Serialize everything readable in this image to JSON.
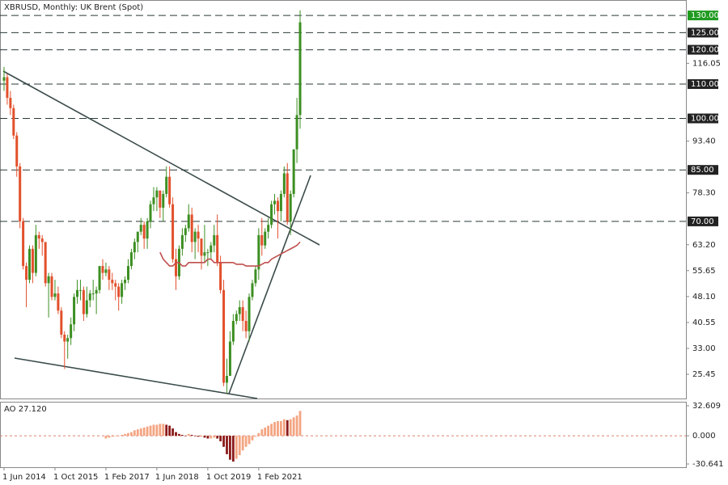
{
  "chart_data": [
    {
      "type": "candlestick",
      "title": "XBRUSD, Monthly:  UK Brent (Spot)",
      "categories": [
        "1 Jun 2014",
        null,
        null,
        null,
        null,
        null,
        null,
        null,
        null,
        null,
        null,
        null,
        null,
        null,
        null,
        null,
        "1 Oct 2015",
        null,
        null,
        null,
        null,
        null,
        null,
        null,
        null,
        null,
        null,
        null,
        null,
        null,
        null,
        null,
        "1 Feb 2017",
        null,
        null,
        null,
        null,
        null,
        null,
        null,
        null,
        null,
        null,
        null,
        null,
        null,
        null,
        null,
        "1 Jun 2018",
        null,
        null,
        null,
        null,
        null,
        null,
        null,
        null,
        null,
        null,
        null,
        null,
        null,
        null,
        null,
        "1 Oct 2019",
        null,
        null,
        null,
        null,
        null,
        null,
        null,
        null,
        null,
        null,
        null,
        null,
        null,
        null,
        null,
        "1 Feb 2021",
        null,
        null,
        null,
        null,
        null,
        null,
        null,
        null,
        null,
        null,
        null,
        null,
        null
      ],
      "open": [
        111,
        112,
        106,
        103,
        95,
        86,
        70,
        57,
        53,
        62,
        55,
        66,
        65,
        64,
        52,
        54,
        48,
        49,
        44,
        37,
        35,
        36,
        40,
        48,
        50,
        50,
        43,
        47,
        49,
        49,
        50,
        57,
        55,
        56,
        53,
        52,
        51,
        48,
        52,
        53,
        57,
        61,
        64,
        67,
        69,
        65,
        70,
        75,
        77,
        79,
        74,
        78,
        83,
        75,
        59,
        54,
        62,
        66,
        68,
        72,
        64,
        67,
        65,
        60,
        61,
        61,
        63,
        66,
        58,
        50,
        23,
        25,
        35,
        41,
        43,
        45,
        41,
        38,
        48,
        52,
        56,
        66,
        63,
        67,
        69,
        75,
        76,
        73,
        78,
        84,
        70,
        78,
        91,
        101
      ],
      "high": [
        115,
        113,
        108,
        104,
        96,
        87,
        71,
        58,
        63,
        63,
        69,
        67,
        66,
        64,
        55,
        55,
        53,
        51,
        45,
        38,
        37,
        42,
        49,
        53,
        53,
        51,
        51,
        50,
        53,
        51,
        57,
        59,
        58,
        57,
        55,
        53,
        52,
        53,
        54,
        59,
        62,
        65,
        67,
        71,
        70,
        71,
        76,
        80,
        80,
        79,
        79,
        86,
        86,
        77,
        62,
        63,
        68,
        69,
        75,
        74,
        68,
        69,
        65,
        69,
        62,
        64,
        69,
        72,
        60,
        53,
        30,
        38,
        43,
        44,
        47,
        47,
        44,
        49,
        53,
        57,
        68,
        71,
        68,
        71,
        76,
        78,
        77,
        79,
        86,
        87,
        79,
        91,
        106,
        131.5
      ],
      "low": [
        108,
        104,
        101,
        94,
        83,
        68,
        56,
        45,
        52,
        52,
        54,
        62,
        60,
        51,
        42,
        47,
        47,
        43,
        36,
        27,
        30,
        34,
        38,
        46,
        47,
        41,
        42,
        45,
        47,
        43,
        49,
        53,
        54,
        50,
        50,
        47,
        44,
        46,
        50,
        52,
        56,
        59,
        61,
        66,
        62,
        62,
        68,
        73,
        73,
        71,
        70,
        77,
        74,
        58,
        50,
        53,
        60,
        64,
        67,
        61,
        59,
        61,
        56,
        58,
        57,
        59,
        61,
        57,
        49,
        22,
        20,
        25,
        34,
        40,
        41,
        38,
        36,
        35,
        47,
        51,
        53,
        60,
        62,
        65,
        68,
        72,
        65,
        70,
        77,
        69,
        66,
        77,
        87,
        97
      ],
      "close": [
        112,
        106,
        103,
        95,
        86,
        70,
        57,
        53,
        62,
        55,
        66,
        65,
        64,
        52,
        54,
        48,
        49,
        44,
        37,
        35,
        36,
        40,
        48,
        50,
        50,
        43,
        47,
        49,
        49,
        50,
        57,
        55,
        56,
        53,
        52,
        51,
        48,
        52,
        53,
        57,
        61,
        64,
        67,
        69,
        65,
        70,
        75,
        77,
        79,
        74,
        78,
        83,
        75,
        59,
        54,
        62,
        66,
        68,
        72,
        64,
        67,
        65,
        60,
        61,
        61,
        63,
        66,
        58,
        50,
        23,
        25,
        35,
        41,
        43,
        45,
        41,
        38,
        48,
        52,
        56,
        66,
        63,
        67,
        69,
        75,
        76,
        73,
        78,
        84,
        70,
        78,
        91,
        101,
        128
      ],
      "up_color": "#3d8f22",
      "down_color": "#e2502c",
      "ma": {
        "color": "#c0504d",
        "values": [
          null,
          null,
          null,
          null,
          null,
          null,
          null,
          null,
          null,
          null,
          null,
          null,
          null,
          null,
          null,
          null,
          null,
          null,
          null,
          null,
          null,
          null,
          null,
          null,
          null,
          null,
          null,
          null,
          null,
          null,
          null,
          null,
          null,
          null,
          null,
          null,
          null,
          null,
          null,
          null,
          null,
          null,
          null,
          null,
          null,
          null,
          null,
          null,
          null,
          61,
          59,
          58,
          57,
          57,
          58,
          58,
          57,
          57,
          58,
          58,
          58,
          58,
          58,
          58,
          59,
          59,
          58,
          58,
          58,
          58,
          58,
          58,
          58,
          57.5,
          57.5,
          57.5,
          57,
          57,
          57,
          57,
          57,
          57.5,
          58,
          58,
          59,
          59.5,
          60,
          60.5,
          61,
          61.5,
          62,
          62.5,
          63,
          64
        ]
      },
      "ylim": [
        18.4,
        134.5
      ],
      "yticks": [
        {
          "value": 25.45,
          "label": "25.45"
        },
        {
          "value": 33,
          "label": "33.00"
        },
        {
          "value": 40.55,
          "label": "40.55"
        },
        {
          "value": 48.1,
          "label": "48.10"
        },
        {
          "value": 55.65,
          "label": "55.65"
        },
        {
          "value": 63.2,
          "label": "63.20"
        },
        {
          "value": 78.3,
          "label": "78.30"
        },
        {
          "value": 93.4,
          "label": "93.40"
        },
        116.05
      ],
      "levels": [
        {
          "value": 130,
          "label": "130.00",
          "color": "#1f9a1f"
        },
        {
          "value": 125,
          "label": "125.00",
          "color": "#222222"
        },
        {
          "value": 120,
          "label": "120.00",
          "color": "#222222"
        },
        {
          "value": 110,
          "label": "110.00",
          "color": "#222222"
        },
        {
          "value": 100,
          "label": "100.00",
          "color": "#222222"
        },
        {
          "value": 85,
          "label": "85.00",
          "color": "#222222"
        },
        {
          "value": 70,
          "label": "70.00",
          "color": "#222222"
        }
      ]
    },
    {
      "type": "histogram",
      "title": "AO 27.120",
      "values": [
        null,
        null,
        null,
        null,
        null,
        null,
        null,
        null,
        null,
        null,
        null,
        null,
        null,
        null,
        null,
        null,
        null,
        null,
        null,
        null,
        null,
        null,
        null,
        null,
        null,
        null,
        null,
        null,
        null,
        null,
        null,
        null,
        -3,
        -2,
        -1,
        0,
        0,
        1,
        2,
        3,
        4,
        6,
        7,
        8,
        9,
        10,
        11,
        12,
        12,
        13,
        13,
        12,
        11,
        8,
        4,
        2,
        1,
        0,
        2,
        1,
        0,
        -1,
        -1,
        -2,
        -3,
        -3,
        -2,
        -3,
        -6,
        -12,
        -20,
        -26,
        -28,
        -25,
        -21,
        -16,
        -12,
        -9,
        -5,
        -1,
        3,
        7,
        9,
        11,
        13,
        15,
        16,
        16,
        18,
        17,
        18,
        20,
        22,
        27
      ],
      "up_color": "#f4a582",
      "down_color": "#8b1a1a",
      "ylim": [
        -30.641,
        32.609
      ],
      "yticks": [
        {
          "value": 32.609,
          "label": "32.609"
        },
        {
          "value": 0,
          "label": "0.000"
        },
        {
          "value": -30.641,
          "label": "-30.641"
        }
      ]
    }
  ]
}
